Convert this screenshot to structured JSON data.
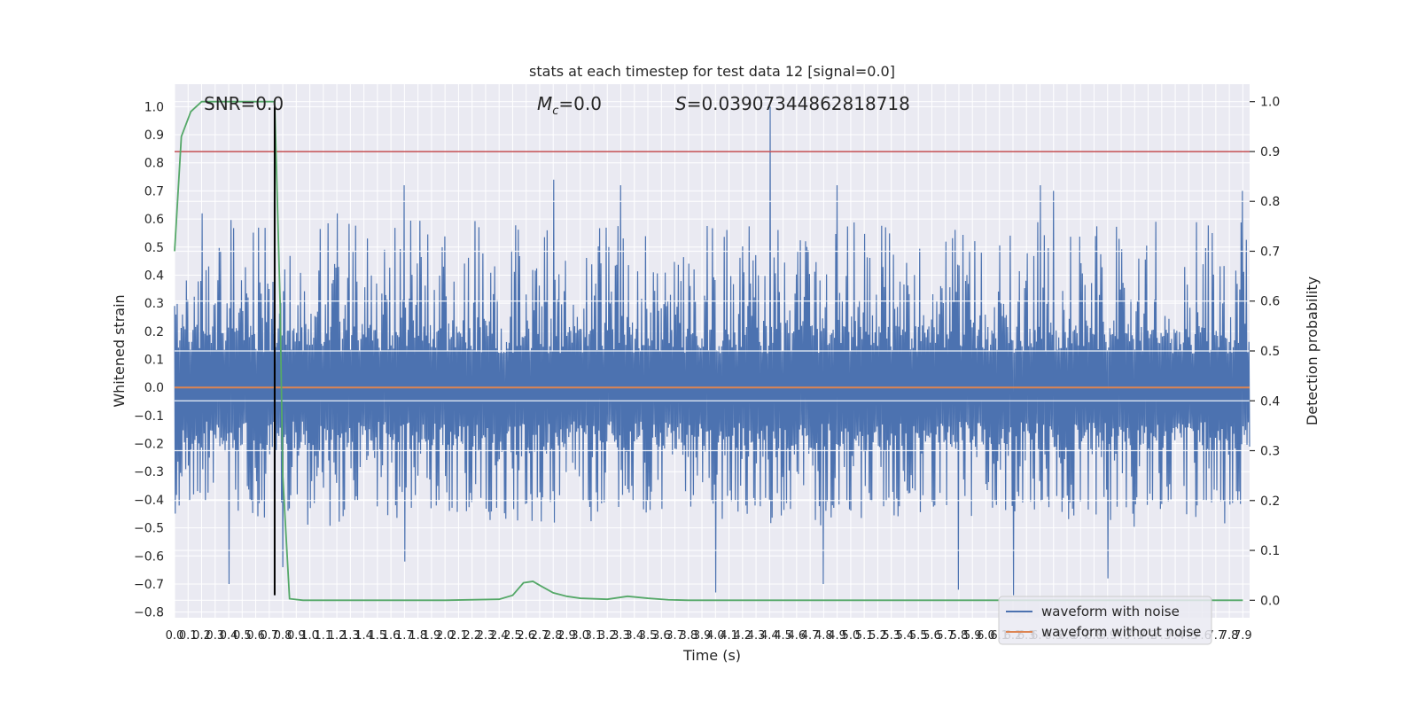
{
  "chart_data": {
    "type": "line",
    "title": "stats at each timestep for test data 12 [signal=0.0]",
    "xlabel": "Time (s)",
    "ylabel_left": "Whitened strain",
    "ylabel_right": "Detection probability",
    "xlim": [
      0.0,
      7.95
    ],
    "ylim_left": [
      -0.82,
      1.08
    ],
    "ylim_right": [
      -0.035,
      1.035
    ],
    "x_ticks": [
      0.0,
      0.1,
      0.2,
      0.3,
      0.4,
      0.5,
      0.6,
      0.7,
      0.8,
      0.9,
      1.0,
      1.1,
      1.2,
      1.3,
      1.4,
      1.5,
      1.6,
      1.7,
      1.8,
      1.9,
      2.0,
      2.1,
      2.2,
      2.3,
      2.4,
      2.5,
      2.6,
      2.7,
      2.8,
      2.9,
      3.0,
      3.1,
      3.2,
      3.3,
      3.4,
      3.5,
      3.6,
      3.7,
      3.8,
      3.9,
      4.0,
      4.1,
      4.2,
      4.3,
      4.4,
      4.5,
      4.6,
      4.7,
      4.8,
      4.9,
      5.0,
      5.1,
      5.2,
      5.3,
      5.4,
      5.5,
      5.6,
      5.7,
      5.8,
      5.9,
      6.0,
      6.1,
      6.2,
      6.3,
      6.4,
      6.5,
      6.6,
      6.7,
      6.8,
      6.9,
      7.0,
      7.1,
      7.2,
      7.3,
      7.4,
      7.5,
      7.6,
      7.7,
      7.8,
      7.9
    ],
    "x_tick_labels": [
      "0.0",
      "0.1",
      "0.2",
      "0.3",
      "0.4",
      "0.5",
      "0.6",
      "0.7",
      "0.8",
      "0.9",
      "1.0",
      "1.1",
      "1.2",
      "1.3",
      "1.4",
      "1.5",
      "1.6",
      "1.7",
      "1.8",
      "1.9",
      "2.0",
      "2.1",
      "2.2",
      "2.3",
      "2.4",
      "2.5",
      "2.6",
      "2.7",
      "2.8",
      "2.9",
      "3.0",
      "3.1",
      "3.2",
      "3.3",
      "3.4",
      "3.5",
      "3.6",
      "3.7",
      "3.8",
      "3.9",
      "4.0",
      "4.1",
      "4.2",
      "4.3",
      "4.4",
      "4.5",
      "4.6",
      "4.7",
      "4.8",
      "4.9",
      "5.0",
      "5.1",
      "5.2",
      "5.3",
      "5.4",
      "5.5",
      "5.6",
      "5.7",
      "5.8",
      "5.9",
      "6.0",
      "6.1",
      "6.2",
      "6.3",
      "6.4",
      "6.5",
      "6.6",
      "6.7",
      "6.8",
      "6.9",
      "7.0",
      "7.1",
      "7.2",
      "7.3",
      "7.4",
      "7.5",
      "7.6",
      "7.7",
      "7.8",
      "7.9"
    ],
    "y_ticks_left": [
      -0.8,
      -0.7,
      -0.6,
      -0.5,
      -0.4,
      -0.3,
      -0.2,
      -0.1,
      0.0,
      0.1,
      0.2,
      0.3,
      0.4,
      0.5,
      0.6,
      0.7,
      0.8,
      0.9,
      1.0
    ],
    "y_tick_labels_left": [
      "−0.8",
      "−0.7",
      "−0.6",
      "−0.5",
      "−0.4",
      "−0.3",
      "−0.2",
      "−0.1",
      "0.0",
      "0.1",
      "0.2",
      "0.3",
      "0.4",
      "0.5",
      "0.6",
      "0.7",
      "0.8",
      "0.9",
      "1.0"
    ],
    "y_ticks_right": [
      0.0,
      0.1,
      0.2,
      0.3,
      0.4,
      0.5,
      0.6,
      0.7,
      0.8,
      0.9,
      1.0
    ],
    "y_tick_labels_right": [
      "0.0",
      "0.1",
      "0.2",
      "0.3",
      "0.4",
      "0.5",
      "0.6",
      "0.7",
      "0.8",
      "0.9",
      "1.0"
    ],
    "annotations": {
      "snr": "SNR=0.0",
      "mc_symbol": "M",
      "mc_sub": "c",
      "mc_value": "=0.0",
      "s_symbol": "S",
      "s_value": "=0.03907344862818718"
    },
    "series": [
      {
        "name": "waveform with noise",
        "axis": "left",
        "color": "#4c72b0",
        "kind": "noise",
        "num_samples": 1640,
        "core_amplitude": 0.22,
        "typical_max": 0.45,
        "typical_min": -0.4,
        "peaks": [
          {
            "x": 4.4,
            "y": 1.0
          },
          {
            "x": 2.8,
            "y": 0.74
          },
          {
            "x": 1.7,
            "y": 0.72
          },
          {
            "x": 3.3,
            "y": 0.72
          },
          {
            "x": 4.9,
            "y": 0.72
          },
          {
            "x": 6.4,
            "y": 0.72
          },
          {
            "x": 6.5,
            "y": 0.7
          },
          {
            "x": 7.9,
            "y": 0.7
          },
          {
            "x": 0.2,
            "y": 0.62
          },
          {
            "x": 1.2,
            "y": 0.62
          },
          {
            "x": 4.0,
            "y": -0.73
          },
          {
            "x": 6.2,
            "y": -0.74
          },
          {
            "x": 5.8,
            "y": -0.72
          },
          {
            "x": 0.4,
            "y": -0.7
          },
          {
            "x": 4.8,
            "y": -0.7
          },
          {
            "x": 6.9,
            "y": -0.68
          },
          {
            "x": 0.8,
            "y": -0.64
          },
          {
            "x": 1.7,
            "y": -0.62
          }
        ]
      },
      {
        "name": "waveform without noise",
        "axis": "left",
        "color": "#dd8452",
        "x": [
          0.0,
          7.95
        ],
        "y": [
          0.0,
          0.0
        ]
      },
      {
        "name": "detection probability",
        "axis": "right",
        "color": "#55a868",
        "x": [
          0.0,
          0.05,
          0.12,
          0.2,
          0.3,
          0.5,
          0.7,
          0.74,
          0.78,
          0.8,
          0.85,
          0.95,
          1.2,
          2.0,
          2.4,
          2.5,
          2.58,
          2.65,
          2.7,
          2.8,
          2.9,
          3.0,
          3.2,
          3.35,
          3.5,
          3.65,
          3.8,
          4.0,
          5.0,
          6.0,
          7.0,
          7.9
        ],
        "y": [
          0.7,
          0.93,
          0.98,
          1.0,
          1.0,
          1.0,
          1.0,
          1.0,
          0.6,
          0.25,
          0.003,
          0.0,
          0.0,
          0.0,
          0.002,
          0.01,
          0.035,
          0.038,
          0.03,
          0.015,
          0.008,
          0.004,
          0.002,
          0.008,
          0.004,
          0.001,
          0.0,
          0.0,
          0.0,
          0.0,
          0.0,
          0.0
        ]
      }
    ],
    "horizontal_lines": [
      {
        "axis": "right",
        "y": 0.9,
        "color": "#c44e52"
      }
    ],
    "vertical_lines": [
      {
        "x": 0.74,
        "y_from": -0.74,
        "y_to": 1.0,
        "color": "#000000"
      }
    ],
    "legend": {
      "location": "lower-right",
      "entries": [
        {
          "label": "waveform with noise",
          "color": "#4c72b0"
        },
        {
          "label": "waveform without noise",
          "color": "#dd8452"
        }
      ]
    }
  }
}
